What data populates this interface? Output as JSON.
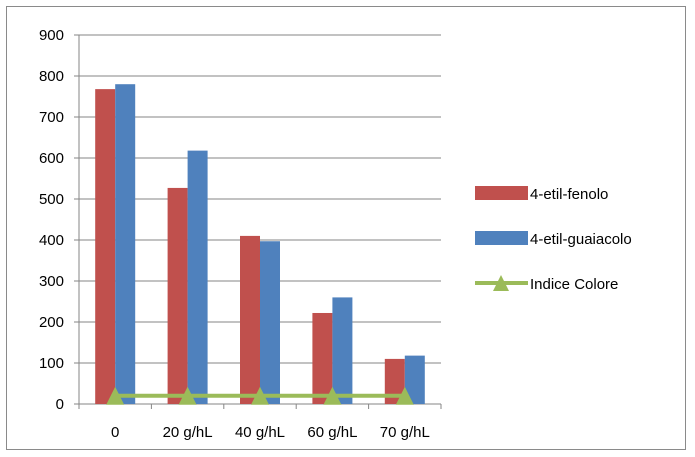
{
  "chart_data": {
    "type": "bar",
    "categories": [
      "0",
      "20 g/hL",
      "40 g/hL",
      "60 g/hL",
      "70 g/hL"
    ],
    "series": [
      {
        "name": "4-etil-fenolo",
        "type": "bar",
        "color": "#C0504D",
        "values": [
          768,
          527,
          410,
          222,
          110
        ]
      },
      {
        "name": "4-etil-guaiacolo",
        "type": "bar",
        "color": "#4F81BD",
        "values": [
          780,
          618,
          397,
          260,
          118
        ]
      },
      {
        "name": "Indice Colore",
        "type": "line",
        "marker": "triangle",
        "color": "#9BBB59",
        "values": [
          20,
          20,
          20,
          20,
          20
        ]
      }
    ],
    "yticks": [
      "0",
      "100",
      "200",
      "300",
      "400",
      "500",
      "600",
      "700",
      "800",
      "900"
    ],
    "ylim": [
      0,
      900
    ],
    "grid": "horizontal",
    "legend": "right"
  }
}
